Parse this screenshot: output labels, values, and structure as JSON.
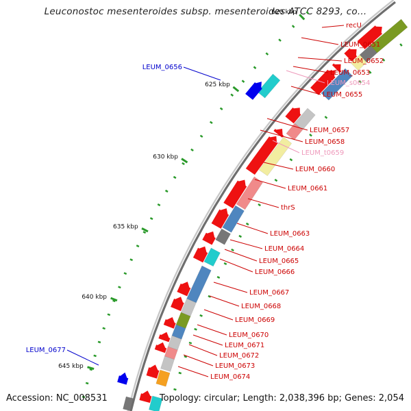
{
  "title": "Leuconostoc mesenteroides subsp. mesenteroides ATCC 8293, co...",
  "accession": "Accession: NC_008531",
  "summary": "Topology: circular; Length: 2,038,396 bp; Genes: 2,054",
  "colors": {
    "backbone_dark": "#6e6e6e",
    "backbone_light": "#c8c8c8",
    "tick": "#2a9a2a",
    "red_label": "#cc0000",
    "pink_label": "#ee99bb",
    "blue_label": "#0000cc",
    "gene_red": "#ee1111",
    "gene_blue": "#0000ee",
    "cog_olive": "#7a9a22",
    "cog_grey": "#777777",
    "cog_light_grey": "#c4c4c4",
    "cog_yellow": "#f2eda0",
    "cog_steel": "#4f86bf",
    "cog_salmon": "#f08a8a",
    "cog_cyan": "#22cccc",
    "cog_orange": "#f5a020"
  },
  "scale_labels": [
    "620 kbp",
    "625 kbp",
    "630 kbp",
    "635 kbp",
    "640 kbp",
    "645 kbp"
  ],
  "labels_right": [
    {
      "text": "recU",
      "color": "red"
    },
    {
      "text": "LEUM_0651",
      "color": "red"
    },
    {
      "text": "LEUM_0652",
      "color": "red"
    },
    {
      "text": "LEUM_0653",
      "color": "red"
    },
    {
      "text": "LEUM_s0654",
      "color": "pink"
    },
    {
      "text": "LEUM_0655",
      "color": "red"
    },
    {
      "text": "LEUM_0657",
      "color": "red"
    },
    {
      "text": "LEUM_0658",
      "color": "red"
    },
    {
      "text": "LEUM_t0659",
      "color": "pink"
    },
    {
      "text": "LEUM_0660",
      "color": "red"
    },
    {
      "text": "LEUM_0661",
      "color": "red"
    },
    {
      "text": "thrS",
      "color": "red"
    },
    {
      "text": "LEUM_0663",
      "color": "red"
    },
    {
      "text": "LEUM_0664",
      "color": "red"
    },
    {
      "text": "LEUM_0665",
      "color": "red"
    },
    {
      "text": "LEUM_0666",
      "color": "red"
    },
    {
      "text": "LEUM_0667",
      "color": "red"
    },
    {
      "text": "LEUM_0668",
      "color": "red"
    },
    {
      "text": "LEUM_0669",
      "color": "red"
    },
    {
      "text": "LEUM_0670",
      "color": "red"
    },
    {
      "text": "LEUM_0671",
      "color": "red"
    },
    {
      "text": "LEUM_0672",
      "color": "red"
    },
    {
      "text": "LEUM_0673",
      "color": "red"
    },
    {
      "text": "LEUM_0674",
      "color": "red"
    }
  ],
  "labels_left": [
    {
      "text": "LEUM_0656",
      "color": "blue"
    },
    {
      "text": "LEUM_0677",
      "color": "blue"
    }
  ]
}
